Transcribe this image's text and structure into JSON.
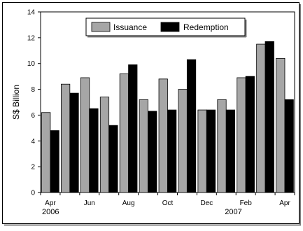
{
  "chart_data": {
    "type": "bar",
    "categories": [
      "Apr 2006",
      "May 2006",
      "Jun 2006",
      "Jul 2006",
      "Aug 2006",
      "Sep 2006",
      "Oct 2006",
      "Nov 2006",
      "Dec 2006",
      "Jan 2007",
      "Feb 2007",
      "Mar 2007",
      "Apr 2007"
    ],
    "tick_labels": [
      "Apr",
      "",
      "Jun",
      "",
      "Aug",
      "",
      "Oct",
      "",
      "Dec",
      "",
      "Feb",
      "",
      "Apr"
    ],
    "year_labels": [
      {
        "text": "2006",
        "category_index": 0
      },
      {
        "text": "2007",
        "category_index": 9
      }
    ],
    "series": [
      {
        "name": "Issuance",
        "color": "#a6a6a6",
        "values": [
          6.2,
          8.4,
          8.9,
          7.4,
          9.2,
          7.2,
          8.8,
          8.0,
          6.4,
          7.2,
          8.9,
          11.5,
          10.4
        ]
      },
      {
        "name": "Redemption",
        "color": "#000000",
        "values": [
          4.8,
          7.7,
          6.5,
          5.2,
          9.9,
          6.3,
          6.4,
          10.3,
          6.4,
          6.4,
          9.0,
          11.7,
          7.2
        ]
      }
    ],
    "ylabel": "S$ Billion",
    "ylim": [
      0,
      14
    ],
    "yticks": [
      0,
      2,
      4,
      6,
      8,
      10,
      12,
      14
    ],
    "grid": false,
    "legend": "top-center",
    "title": "",
    "xlabel": ""
  }
}
